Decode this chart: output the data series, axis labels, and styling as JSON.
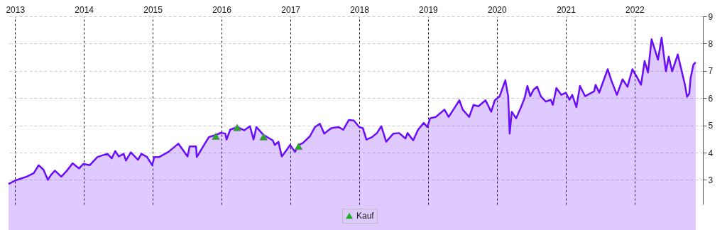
{
  "chart_data": {
    "type": "area",
    "xlim": [
      "2012-11-27",
      "2022-12-29"
    ],
    "ylim": [
      2.1,
      9
    ],
    "yticks": [
      3,
      4,
      5,
      6,
      7,
      8,
      9
    ],
    "xticks": [
      {
        "value": "2013-01-01",
        "label": "2013"
      },
      {
        "value": "2014-01-01",
        "label": "2014"
      },
      {
        "value": "2015-01-01",
        "label": "2015"
      },
      {
        "value": "2016-01-01",
        "label": "2016"
      },
      {
        "value": "2017-01-01",
        "label": "2017"
      },
      {
        "value": "2018-01-01",
        "label": "2018"
      },
      {
        "value": "2019-01-01",
        "label": "2019"
      },
      {
        "value": "2020-01-01",
        "label": "2020"
      },
      {
        "value": "2021-01-01",
        "label": "2021"
      },
      {
        "value": "2022-01-01",
        "label": "2022"
      }
    ],
    "grid": true,
    "legend": "bottom",
    "series": [
      {
        "color": "#6a0dfa",
        "x": [
          "2012-11-27",
          "2013-01-02",
          "2013-02-01",
          "2013-03-03",
          "2013-04-10",
          "2013-05-06",
          "2013-06-01",
          "2013-06-24",
          "2013-07-09",
          "2013-07-31",
          "2013-09-03",
          "2013-10-03",
          "2013-11-02",
          "2013-12-06",
          "2013-12-29",
          "2014-02-01",
          "2014-03-14",
          "2014-05-06",
          "2014-05-29",
          "2014-06-16",
          "2014-07-05",
          "2014-07-31",
          "2014-08-12",
          "2014-09-07",
          "2014-10-15",
          "2014-11-02",
          "2014-12-02",
          "2014-12-29",
          "2015-01-10",
          "2015-02-05",
          "2015-03-26",
          "2015-05-17",
          "2015-06-09",
          "2015-07-05",
          "2015-07-16",
          "2015-08-19",
          "2015-08-23",
          "2015-09-26",
          "2015-10-26",
          "2015-12-02",
          "2015-12-29",
          "2016-01-21",
          "2016-01-28",
          "2016-02-16",
          "2016-03-25",
          "2016-05-01",
          "2016-05-31",
          "2016-06-19",
          "2016-07-04",
          "2016-08-11",
          "2016-09-29",
          "2016-10-10",
          "2016-10-29",
          "2016-11-16",
          "2016-12-13",
          "2016-12-30",
          "2017-01-25",
          "2017-02-13",
          "2017-03-07",
          "2017-04-14",
          "2017-05-11",
          "2017-06-06",
          "2017-06-29",
          "2017-08-05",
          "2017-09-12",
          "2017-10-08",
          "2017-11-07",
          "2017-12-03",
          "2018-01-01",
          "2018-01-20",
          "2018-02-08",
          "2018-03-10",
          "2018-04-05",
          "2018-04-28",
          "2018-05-24",
          "2018-07-01",
          "2018-07-31",
          "2018-09-03",
          "2018-09-14",
          "2018-10-14",
          "2018-11-09",
          "2018-12-09",
          "2018-12-28",
          "2019-01-12",
          "2019-02-11",
          "2019-03-29",
          "2019-04-20",
          "2019-05-24",
          "2019-06-16",
          "2019-07-04",
          "2019-08-07",
          "2019-08-30",
          "2019-09-25",
          "2019-11-02",
          "2019-12-02",
          "2019-12-21",
          "2020-01-16",
          "2020-02-15",
          "2020-03-01",
          "2020-03-09",
          "2020-03-20",
          "2020-04-12",
          "2020-05-08",
          "2020-05-27",
          "2020-06-11",
          "2020-06-26",
          "2020-07-15",
          "2020-08-02",
          "2020-08-21",
          "2020-09-17",
          "2020-10-13",
          "2020-10-24",
          "2020-11-12",
          "2020-12-08",
          "2021-01-01",
          "2021-01-20",
          "2021-02-04",
          "2021-02-26",
          "2021-03-17",
          "2021-04-13",
          "2021-05-31",
          "2021-06-08",
          "2021-06-27",
          "2021-08-11",
          "2021-08-30",
          "2021-09-29",
          "2021-10-29",
          "2021-11-24",
          "2021-12-20",
          "2022-01-12",
          "2022-02-04",
          "2022-02-23",
          "2022-03-13",
          "2022-04-01",
          "2022-05-05",
          "2022-05-24",
          "2022-06-16",
          "2022-07-01",
          "2022-07-19",
          "2022-08-18",
          "2022-09-06",
          "2022-09-25",
          "2022-10-06",
          "2022-10-18",
          "2022-10-25",
          "2022-11-09",
          "2022-11-21"
        ],
        "values": [
          2.85,
          2.98,
          3.05,
          3.12,
          3.25,
          3.54,
          3.37,
          3.0,
          3.17,
          3.34,
          3.12,
          3.34,
          3.61,
          3.42,
          3.59,
          3.54,
          3.84,
          3.96,
          3.79,
          4.06,
          3.86,
          3.96,
          3.71,
          4.01,
          3.74,
          3.96,
          3.84,
          3.54,
          3.84,
          3.84,
          4.03,
          4.33,
          4.11,
          3.86,
          4.23,
          4.23,
          3.84,
          4.23,
          4.57,
          4.65,
          4.73,
          4.7,
          4.48,
          4.84,
          4.94,
          4.82,
          4.97,
          4.48,
          4.94,
          4.65,
          4.45,
          4.28,
          4.4,
          3.86,
          4.11,
          4.28,
          4.03,
          4.28,
          4.35,
          4.6,
          4.94,
          5.06,
          4.7,
          4.9,
          4.94,
          4.84,
          5.2,
          5.18,
          4.94,
          4.9,
          4.48,
          4.57,
          4.72,
          4.97,
          4.4,
          4.7,
          4.72,
          4.52,
          4.72,
          4.45,
          4.84,
          5.09,
          4.94,
          5.26,
          5.31,
          5.58,
          5.31,
          5.67,
          5.92,
          5.58,
          5.31,
          5.75,
          5.7,
          5.92,
          5.5,
          5.92,
          6.07,
          6.66,
          6.07,
          4.7,
          5.5,
          5.26,
          5.67,
          6.0,
          6.45,
          6.07,
          6.32,
          6.42,
          6.07,
          5.87,
          5.94,
          5.75,
          6.37,
          6.12,
          6.2,
          5.94,
          6.12,
          5.67,
          6.45,
          6.07,
          6.25,
          6.49,
          6.2,
          7.06,
          6.66,
          6.12,
          6.69,
          6.42,
          7.06,
          6.79,
          6.49,
          7.36,
          6.94,
          8.16,
          7.41,
          8.22,
          6.98,
          7.52,
          6.98,
          7.6,
          7.04,
          6.49,
          6.05,
          6.17,
          6.74,
          7.23,
          7.31
        ]
      },
      {
        "type": "scatter",
        "name": "Kauf",
        "color": "#1fae1f",
        "marker": "triangle",
        "x": [
          "2015-12-02",
          "2016-03-24",
          "2016-08-11",
          "2017-02-13"
        ],
        "values": [
          4.6,
          4.92,
          4.58,
          4.23
        ]
      }
    ]
  }
}
